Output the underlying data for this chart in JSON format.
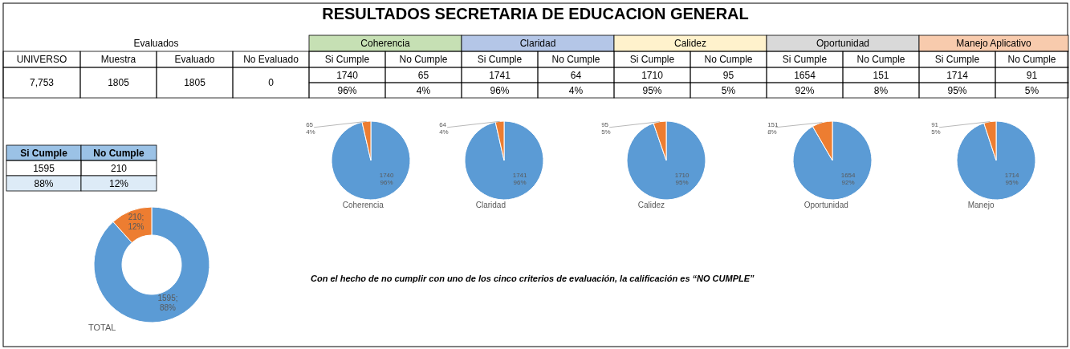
{
  "chart_data": [
    {
      "type": "other",
      "title": "RESULTADOS SECRETARIA DE EDUCACION GENERAL",
      "annotations": [
        "Evaluados",
        "Coherencia",
        "Claridad",
        "Calidez",
        "Oportunidad",
        "Manejo Aplicativo",
        "UNIVERSO",
        "Muestra",
        "Evaluado",
        "No Evaluado",
        "Si Cumple",
        "No Cumple",
        "Si Cumple",
        "No Cumple",
        "Si Cumple",
        "No Cumple",
        "Si Cumple",
        "No Cumple",
        "Si Cumple",
        "No Cumple",
        "7,753",
        "1805",
        "1805",
        "0",
        "1740",
        "65",
        "1741",
        "64",
        "1710",
        "95",
        "1654",
        "151",
        "1714",
        "91",
        "96%",
        "4%",
        "96%",
        "4%",
        "95%",
        "5%",
        "92%",
        "8%",
        "95%",
        "5%",
        "Con el hecho de no cumplir con uno de los cinco criterios de evaluación, la calificación es “NO CUMPLE”"
      ],
      "colors": [
        "#c6e0b4",
        "#b4c6e7",
        "#fff2cc",
        "#d9d9d9",
        "#f8cbad"
      ]
    },
    {
      "type": "pie",
      "xlabel": "Coherencia",
      "values": [
        1740,
        65
      ],
      "colors": [
        "#5b9bd5",
        "#ed7d31"
      ],
      "value_labels": [
        "1740\n96%",
        "65\n4%"
      ]
    },
    {
      "type": "pie",
      "xlabel": "Claridad",
      "values": [
        1741,
        64
      ],
      "colors": [
        "#5b9bd5",
        "#ed7d31"
      ],
      "value_labels": [
        "1741\n96%",
        "64\n4%"
      ]
    },
    {
      "type": "pie",
      "xlabel": "Calidez",
      "values": [
        1710,
        95
      ],
      "colors": [
        "#5b9bd5",
        "#ed7d31"
      ],
      "value_labels": [
        "1710\n95%",
        "95\n5%"
      ]
    },
    {
      "type": "pie",
      "xlabel": "Oportunidad",
      "values": [
        1654,
        151
      ],
      "colors": [
        "#5b9bd5",
        "#ed7d31"
      ],
      "value_labels": [
        "1654\n92%",
        "151\n8%"
      ]
    },
    {
      "type": "pie",
      "xlabel": "Manejo",
      "values": [
        1714,
        91
      ],
      "colors": [
        "#5b9bd5",
        "#ed7d31"
      ],
      "value_labels": [
        "1714\n95%",
        "91\n5%"
      ]
    },
    {
      "type": "donut",
      "xlabel": "TOTAL",
      "values": [
        1595,
        210
      ],
      "colors": [
        "#5b9bd5",
        "#ed7d31"
      ],
      "value_labels": [
        "1595;\n88%",
        "210;\n12%"
      ],
      "annotations": [
        "Si Cumple",
        "No Cumple",
        "1595",
        "210",
        "88%",
        "12%"
      ]
    }
  ]
}
